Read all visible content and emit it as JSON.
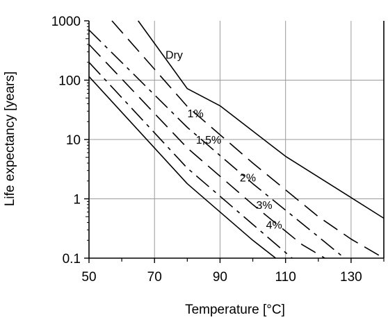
{
  "chart_data": {
    "type": "line",
    "xlabel": "Temperature [°C]",
    "ylabel": "Life expectancy [years]",
    "xlim": [
      50,
      140
    ],
    "ylim": [
      0.1,
      1000
    ],
    "y_scale": "log",
    "grid": true,
    "x_ticks": [
      {
        "value": 50,
        "label": "50"
      },
      {
        "value": 70,
        "label": "70"
      },
      {
        "value": 90,
        "label": "90"
      },
      {
        "value": 110,
        "label": "110"
      },
      {
        "value": 130,
        "label": "130"
      }
    ],
    "x_minor_ticks": [
      60,
      80,
      100,
      120,
      140
    ],
    "y_ticks": [
      {
        "value": 0.1,
        "label": "0.1"
      },
      {
        "value": 1,
        "label": "1"
      },
      {
        "value": 10,
        "label": "10"
      },
      {
        "value": 100,
        "label": "100"
      },
      {
        "value": 1000,
        "label": "1000"
      }
    ],
    "series": [
      {
        "name": "Dry",
        "dash": "solid",
        "label_at": [
          76,
          270
        ],
        "points": [
          [
            65,
            1000
          ],
          [
            80,
            72
          ],
          [
            90,
            37
          ],
          [
            110,
            5.2
          ],
          [
            130,
            1.05
          ],
          [
            140,
            0.47
          ]
        ]
      },
      {
        "name": "1%",
        "dash": "long-dash",
        "label_at": [
          82.5,
          28
        ],
        "points": [
          [
            57,
            1000
          ],
          [
            80,
            36
          ],
          [
            100,
            4.0
          ],
          [
            120,
            0.5
          ],
          [
            130,
            0.21
          ],
          [
            140,
            0.1
          ]
        ]
      },
      {
        "name": "1,5%",
        "dash": "dash-dot",
        "label_at": [
          86.5,
          10
        ],
        "points": [
          [
            50,
            700
          ],
          [
            80,
            16
          ],
          [
            100,
            1.8
          ],
          [
            120,
            0.23
          ],
          [
            128,
            0.1
          ]
        ]
      },
      {
        "name": "2%",
        "dash": "long-dash",
        "label_at": [
          98.5,
          2.3
        ],
        "points": [
          [
            50,
            400
          ],
          [
            80,
            7.2
          ],
          [
            100,
            0.8
          ],
          [
            115,
            0.17
          ],
          [
            122,
            0.1
          ]
        ]
      },
      {
        "name": "3%",
        "dash": "dash-dot",
        "label_at": [
          103.5,
          0.8
        ],
        "points": [
          [
            50,
            200
          ],
          [
            80,
            3.3
          ],
          [
            100,
            0.37
          ],
          [
            112,
            0.1
          ]
        ]
      },
      {
        "name": "4%",
        "dash": "solid",
        "label_at": [
          106.5,
          0.37
        ],
        "points": [
          [
            50,
            115
          ],
          [
            80,
            1.8
          ],
          [
            100,
            0.2
          ],
          [
            107,
            0.1
          ]
        ]
      }
    ]
  }
}
